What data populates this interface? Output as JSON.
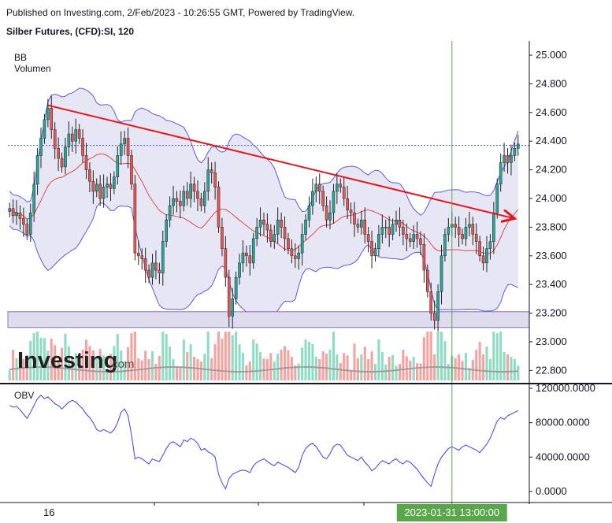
{
  "header": {
    "published": "Published on Investing.com, 2/Feb/2023 - 10:26:55 GMT, Powered by TradingView.",
    "instrument": "Silber Futures, (CFD):SI, 120"
  },
  "labels": {
    "bb": "BB",
    "volume": "Volumen",
    "obv": "OBV",
    "logo_word": "Investing",
    "logo_suffix": ".com"
  },
  "colors": {
    "up": "#26a69a",
    "down": "#ef5350",
    "band": "#5b5bd6",
    "band_fill": "#e6e6f5",
    "basis": "#e04848",
    "trend": "#e8141b",
    "obv": "#3d3df5",
    "cursor": "#5aa64a"
  },
  "chart_data": [
    {
      "type": "candlestick",
      "title": "Silber Futures, (CFD):SI, 120",
      "indicators": [
        "BB",
        "Volumen"
      ],
      "ylim": [
        22.75,
        25.05
      ],
      "y_ticks": [
        "25.000",
        "24.800",
        "24.600",
        "24.400",
        "24.200",
        "24.000",
        "23.800",
        "23.600",
        "23.400",
        "23.200",
        "23.000",
        "22.800"
      ],
      "current_price_line": 24.37,
      "support_zone": [
        23.1,
        23.21
      ],
      "trendline": {
        "from_price": 24.65,
        "to_price": 23.86
      },
      "candles_close": [
        23.93,
        23.88,
        23.9,
        23.86,
        23.82,
        23.75,
        23.9,
        24.1,
        24.3,
        24.42,
        24.55,
        24.63,
        24.48,
        24.35,
        24.28,
        24.22,
        24.36,
        24.45,
        24.4,
        24.48,
        24.42,
        24.3,
        24.2,
        24.12,
        24.05,
        24.1,
        24.0,
        24.08,
        24.1,
        24.07,
        24.15,
        24.3,
        24.38,
        24.42,
        24.3,
        24.1,
        23.62,
        23.6,
        23.58,
        23.5,
        23.45,
        23.55,
        23.5,
        23.48,
        23.7,
        23.85,
        23.95,
        24.0,
        23.98,
        23.95,
        24.05,
        24.0,
        24.1,
        24.05,
        24.0,
        23.95,
        24.05,
        24.2,
        24.18,
        24.08,
        23.8,
        23.65,
        23.45,
        23.18,
        23.3,
        23.45,
        23.55,
        23.62,
        23.6,
        23.55,
        23.72,
        23.8,
        23.85,
        23.82,
        23.78,
        23.7,
        23.75,
        23.85,
        23.8,
        23.72,
        23.65,
        23.6,
        23.58,
        23.62,
        23.75,
        23.85,
        23.95,
        24.05,
        24.1,
        24.05,
        23.95,
        23.85,
        23.9,
        24.05,
        24.1,
        24.08,
        24.0,
        23.92,
        23.9,
        23.82,
        23.8,
        23.85,
        23.75,
        23.7,
        23.6,
        23.65,
        23.75,
        23.8,
        23.8,
        23.75,
        23.82,
        23.85,
        23.8,
        23.75,
        23.72,
        23.7,
        23.75,
        23.72,
        23.68,
        23.5,
        23.35,
        23.2,
        23.15,
        23.35,
        23.6,
        23.75,
        23.8,
        23.82,
        23.8,
        23.75,
        23.72,
        23.8,
        23.82,
        23.75,
        23.7,
        23.6,
        23.55,
        23.65,
        23.7,
        23.9,
        24.1,
        24.25,
        24.3,
        24.25,
        24.3,
        24.35,
        24.38
      ],
      "volume_max_fraction": 0.9
    },
    {
      "type": "line",
      "title": "OBV",
      "ylim": [
        -10000,
        125000
      ],
      "y_ticks": [
        "120000.0000",
        "80000.0000",
        "40000.0000",
        "0.0000"
      ],
      "x_ticks": [
        "16"
      ],
      "cursor_label": "2023-01-31 13:00:00",
      "values": [
        100000,
        98000,
        99000,
        95000,
        90000,
        85000,
        92000,
        100000,
        108000,
        112000,
        108000,
        110000,
        106000,
        102000,
        100000,
        96000,
        100000,
        104000,
        106000,
        104000,
        100000,
        96000,
        90000,
        86000,
        80000,
        72000,
        70000,
        72000,
        70000,
        68000,
        72000,
        80000,
        92000,
        96000,
        88000,
        66000,
        38000,
        40000,
        38000,
        35000,
        32000,
        38000,
        36000,
        35000,
        42000,
        50000,
        56000,
        58000,
        55000,
        52000,
        60000,
        58000,
        62000,
        60000,
        56000,
        48000,
        50000,
        46000,
        44000,
        40000,
        20000,
        10000,
        3000,
        15000,
        20000,
        22000,
        24000,
        25000,
        24000,
        22000,
        30000,
        34000,
        36000,
        38000,
        35000,
        32000,
        30000,
        34000,
        32000,
        30000,
        28000,
        25000,
        22000,
        28000,
        42000,
        50000,
        54000,
        56000,
        52000,
        46000,
        40000,
        38000,
        44000,
        52000,
        55000,
        54000,
        48000,
        42000,
        40000,
        38000,
        36000,
        40000,
        34000,
        30000,
        24000,
        27000,
        32000,
        36000,
        34000,
        32000,
        36000,
        38000,
        34000,
        32000,
        36000,
        34000,
        30000,
        26000,
        20000,
        15000,
        10000,
        6000,
        20000,
        32000,
        40000,
        45000,
        50000,
        52000,
        50000,
        48000,
        52000,
        54000,
        52000,
        50000,
        48000,
        45000,
        50000,
        55000,
        62000,
        72000,
        82000,
        86000,
        84000,
        88000,
        90000,
        92000,
        94000
      ]
    }
  ]
}
